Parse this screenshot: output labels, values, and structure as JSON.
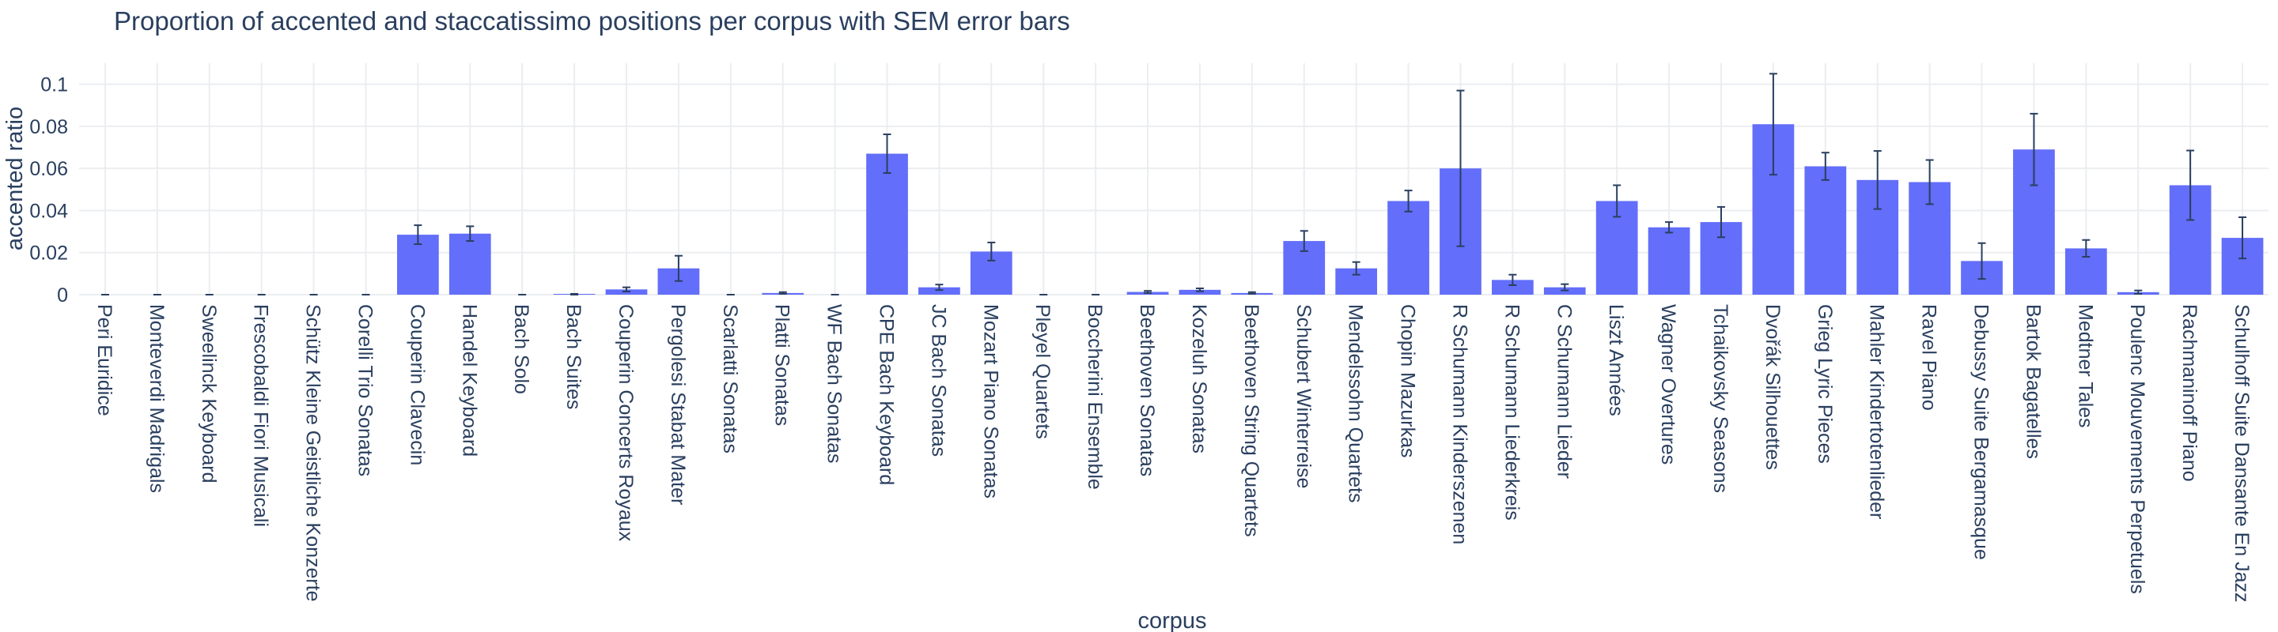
{
  "chart_data": {
    "type": "bar",
    "title": "Proportion of accented and staccatissimo positions per corpus with SEM error bars",
    "xlabel": "corpus",
    "ylabel": "accented ratio",
    "ylim": [
      0,
      0.11
    ],
    "yticks": [
      0,
      0.02,
      0.04,
      0.06,
      0.08,
      0.1
    ],
    "ytick_labels": [
      "0",
      "0.02",
      "0.04",
      "0.06",
      "0.08",
      "0.1"
    ],
    "grid": true,
    "bar_color": "#636efa",
    "error_color": "#2a3f5f",
    "categories": [
      "Peri Euridice",
      "Monteverdi Madrigals",
      "Sweelinck Keyboard",
      "Frescobaldi Fiori Musicali",
      "Schütz Kleine Geistliche Konzerte",
      "Corelli Trio Sonatas",
      "Couperin Clavecin",
      "Handel Keyboard",
      "Bach Solo",
      "Bach Suites",
      "Couperin Concerts Royaux",
      "Pergolesi Stabat Mater",
      "Scarlatti Sonatas",
      "Platti Sonatas",
      "WF Bach Sonatas",
      "CPE Bach Keyboard",
      "JC Bach Sonatas",
      "Mozart Piano Sonatas",
      "Pleyel Quartets",
      "Boccherini Ensemble",
      "Beethoven Sonatas",
      "Kozeluh Sonatas",
      "Beethoven String Quartets",
      "Schubert Winterreise",
      "Mendelssohn Quartets",
      "Chopin Mazurkas",
      "R Schumann Kinderszenen",
      "R Schumann Liederkreis",
      "C Schumann Lieder",
      "Liszt Années",
      "Wagner Overtures",
      "Tchaikovsky Seasons",
      "Dvořák Silhouettes",
      "Grieg Lyric Pieces",
      "Mahler Kindertotenlieder",
      "Ravel Piano",
      "Debussy Suite Bergamasque",
      "Bartok Bagatelles",
      "Medtner Tales",
      "Poulenc Mouvements Perpetuels",
      "Rachmaninoff Piano",
      "Schulhoff Suite Dansante En Jazz"
    ],
    "values": [
      0,
      0,
      0,
      0,
      0,
      0,
      0.0285,
      0.029,
      0,
      0.0002,
      0.0025,
      0.0125,
      0,
      0.0008,
      0,
      0.067,
      0.0035,
      0.0205,
      0,
      0,
      0.0013,
      0.0023,
      0.0008,
      0.0255,
      0.0125,
      0.0445,
      0.06,
      0.007,
      0.0035,
      0.0445,
      0.032,
      0.0345,
      0.081,
      0.061,
      0.0545,
      0.0535,
      0.016,
      0.069,
      0.022,
      0.0012,
      0.052,
      0.027
    ],
    "errors": [
      0,
      0,
      0,
      0,
      0,
      0,
      0.0045,
      0.0035,
      0,
      0.0002,
      0.001,
      0.006,
      0,
      0.0004,
      0,
      0.0092,
      0.0013,
      0.0043,
      0,
      0,
      0.0005,
      0.0007,
      0.0004,
      0.0048,
      0.003,
      0.005,
      0.037,
      0.0025,
      0.0015,
      0.0075,
      0.0025,
      0.0072,
      0.024,
      0.0065,
      0.0138,
      0.0105,
      0.0085,
      0.017,
      0.004,
      0.0008,
      0.0165,
      0.0098
    ]
  }
}
